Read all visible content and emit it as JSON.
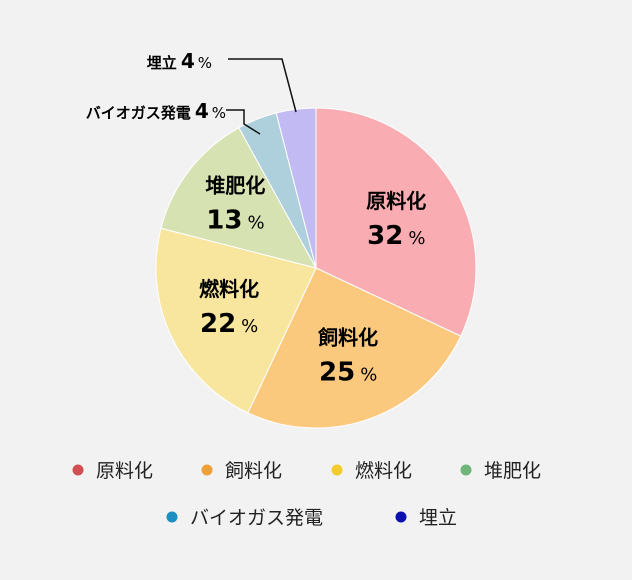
{
  "chart_data": {
    "type": "pie",
    "categories": [
      "原料化",
      "飼料化",
      "燃料化",
      "堆肥化",
      "バイオガス発電",
      "埋立"
    ],
    "values": [
      32,
      25,
      22,
      13,
      4,
      4
    ],
    "unit": "%",
    "slice_colors": [
      "#f9adb2",
      "#fbc97e",
      "#f8e59e",
      "#d6e2b2",
      "#aecfdc",
      "#c2baf2"
    ],
    "legend_colors": [
      "#d04f53",
      "#f0a038",
      "#f2cc2c",
      "#6fb57a",
      "#1b8fc0",
      "#0b0fb0"
    ],
    "legend_position": "bottom"
  }
}
